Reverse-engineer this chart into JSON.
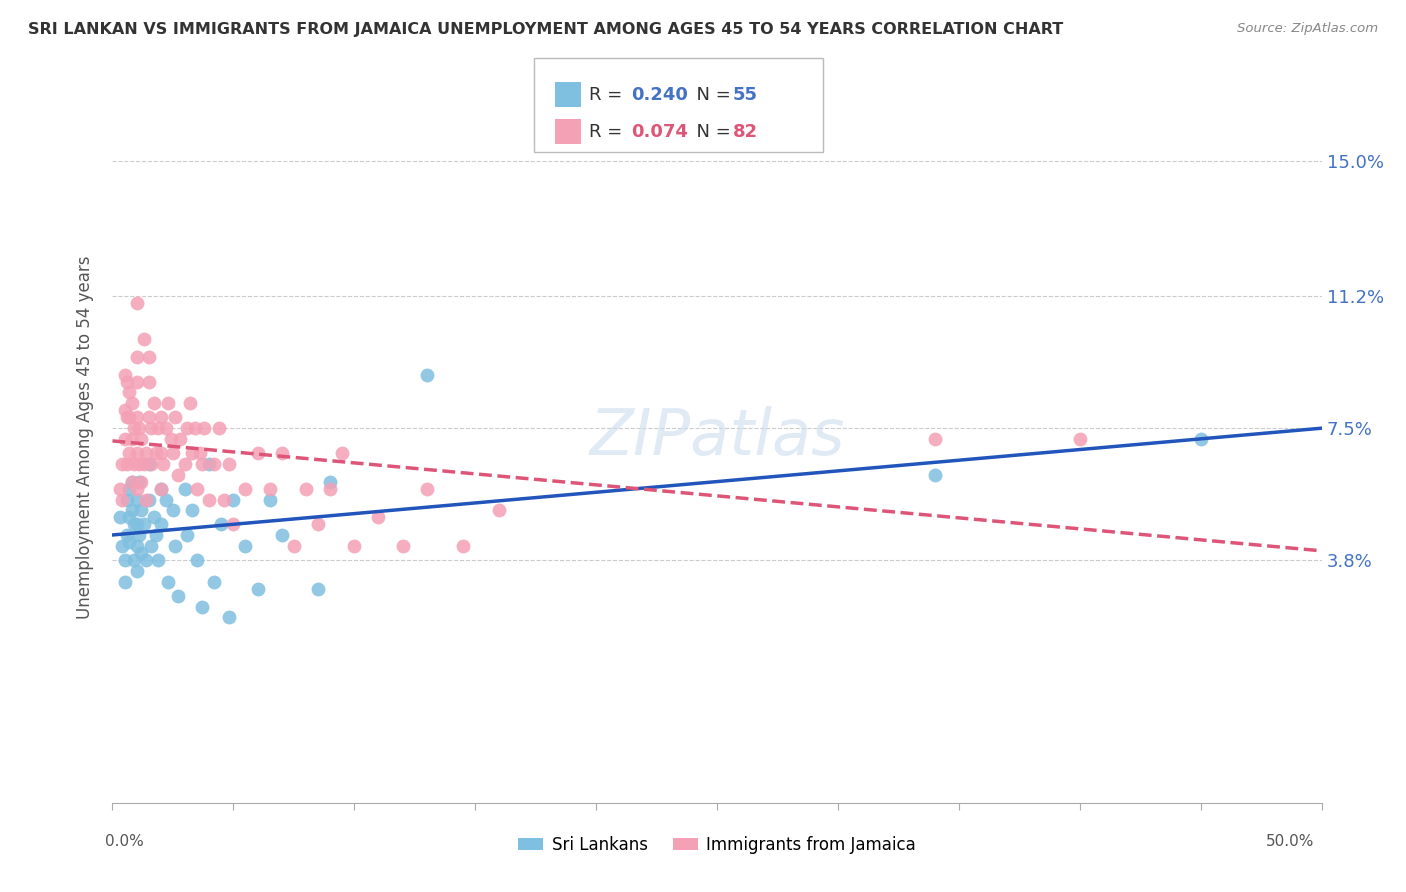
{
  "title": "SRI LANKAN VS IMMIGRANTS FROM JAMAICA UNEMPLOYMENT AMONG AGES 45 TO 54 YEARS CORRELATION CHART",
  "source": "Source: ZipAtlas.com",
  "ylabel": "Unemployment Among Ages 45 to 54 years",
  "ytick_vals": [
    0.038,
    0.075,
    0.112,
    0.15
  ],
  "ytick_labels": [
    "3.8%",
    "7.5%",
    "11.2%",
    "15.0%"
  ],
  "xlim": [
    0.0,
    0.5
  ],
  "ylim": [
    -0.03,
    0.175
  ],
  "legend_label1": "Sri Lankans",
  "legend_label2": "Immigrants from Jamaica",
  "R1": "0.240",
  "N1": "55",
  "R2": "0.074",
  "N2": "82",
  "blue_color": "#7fbfdf",
  "pink_color": "#f4a0b5",
  "trend_blue": "#2255bb",
  "trend_pink": "#dd5577",
  "sri_lanka_x": [
    0.003,
    0.004,
    0.005,
    0.005,
    0.006,
    0.006,
    0.007,
    0.007,
    0.007,
    0.008,
    0.008,
    0.009,
    0.009,
    0.01,
    0.01,
    0.01,
    0.01,
    0.011,
    0.011,
    0.012,
    0.012,
    0.013,
    0.014,
    0.015,
    0.015,
    0.016,
    0.017,
    0.018,
    0.019,
    0.02,
    0.02,
    0.022,
    0.023,
    0.025,
    0.026,
    0.027,
    0.03,
    0.031,
    0.033,
    0.035,
    0.037,
    0.04,
    0.042,
    0.045,
    0.048,
    0.05,
    0.055,
    0.06,
    0.065,
    0.07,
    0.085,
    0.09,
    0.13,
    0.34,
    0.45
  ],
  "sri_lanka_y": [
    0.05,
    0.042,
    0.038,
    0.032,
    0.055,
    0.045,
    0.058,
    0.05,
    0.043,
    0.06,
    0.052,
    0.048,
    0.038,
    0.055,
    0.048,
    0.042,
    0.035,
    0.06,
    0.045,
    0.052,
    0.04,
    0.048,
    0.038,
    0.065,
    0.055,
    0.042,
    0.05,
    0.045,
    0.038,
    0.058,
    0.048,
    0.055,
    0.032,
    0.052,
    0.042,
    0.028,
    0.058,
    0.045,
    0.052,
    0.038,
    0.025,
    0.065,
    0.032,
    0.048,
    0.022,
    0.055,
    0.042,
    0.03,
    0.055,
    0.045,
    0.03,
    0.06,
    0.09,
    0.062,
    0.072
  ],
  "jamaica_x": [
    0.003,
    0.004,
    0.004,
    0.005,
    0.005,
    0.005,
    0.006,
    0.006,
    0.006,
    0.007,
    0.007,
    0.007,
    0.008,
    0.008,
    0.008,
    0.009,
    0.009,
    0.01,
    0.01,
    0.01,
    0.01,
    0.01,
    0.01,
    0.011,
    0.011,
    0.012,
    0.012,
    0.013,
    0.013,
    0.014,
    0.014,
    0.015,
    0.015,
    0.015,
    0.016,
    0.016,
    0.017,
    0.018,
    0.019,
    0.02,
    0.02,
    0.02,
    0.021,
    0.022,
    0.023,
    0.024,
    0.025,
    0.026,
    0.027,
    0.028,
    0.03,
    0.031,
    0.032,
    0.033,
    0.034,
    0.035,
    0.036,
    0.037,
    0.038,
    0.04,
    0.042,
    0.044,
    0.046,
    0.048,
    0.05,
    0.055,
    0.06,
    0.065,
    0.07,
    0.075,
    0.08,
    0.085,
    0.09,
    0.095,
    0.1,
    0.11,
    0.12,
    0.13,
    0.145,
    0.16,
    0.34,
    0.4
  ],
  "jamaica_y": [
    0.058,
    0.065,
    0.055,
    0.072,
    0.08,
    0.09,
    0.065,
    0.078,
    0.088,
    0.068,
    0.078,
    0.085,
    0.06,
    0.072,
    0.082,
    0.065,
    0.075,
    0.058,
    0.068,
    0.078,
    0.088,
    0.095,
    0.11,
    0.065,
    0.075,
    0.06,
    0.072,
    0.065,
    0.1,
    0.055,
    0.068,
    0.078,
    0.088,
    0.095,
    0.065,
    0.075,
    0.082,
    0.068,
    0.075,
    0.058,
    0.068,
    0.078,
    0.065,
    0.075,
    0.082,
    0.072,
    0.068,
    0.078,
    0.062,
    0.072,
    0.065,
    0.075,
    0.082,
    0.068,
    0.075,
    0.058,
    0.068,
    0.065,
    0.075,
    0.055,
    0.065,
    0.075,
    0.055,
    0.065,
    0.048,
    0.058,
    0.068,
    0.058,
    0.068,
    0.042,
    0.058,
    0.048,
    0.058,
    0.068,
    0.042,
    0.05,
    0.042,
    0.058,
    0.042,
    0.052,
    0.072,
    0.072
  ]
}
